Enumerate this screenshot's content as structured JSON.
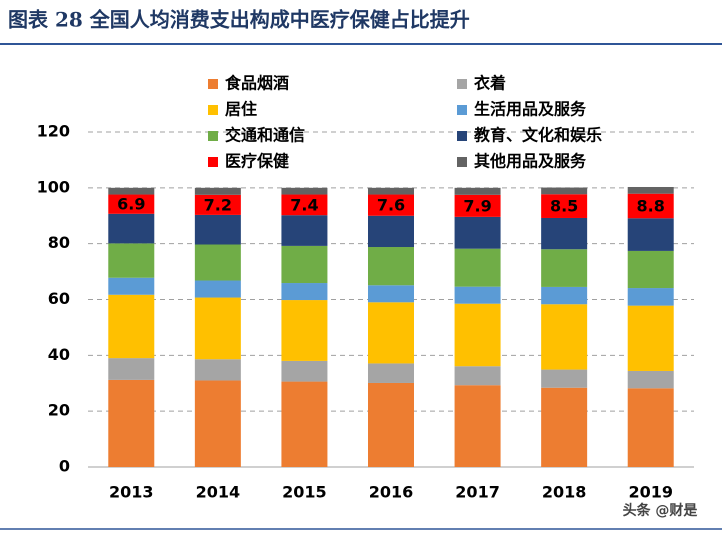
{
  "chart_data": {
    "type": "stacked_bar",
    "title": "图表 28  全国人均消费支出构成中医疗保健占比提升",
    "categories": [
      "2013",
      "2014",
      "2015",
      "2016",
      "2017",
      "2018",
      "2019"
    ],
    "series": [
      {
        "name": "食品烟酒",
        "color": "#ed7d31",
        "values": [
          31.2,
          31.0,
          30.6,
          30.1,
          29.3,
          28.4,
          28.2
        ]
      },
      {
        "name": "衣着",
        "color": "#a5a5a5",
        "values": [
          7.8,
          7.6,
          7.4,
          7.0,
          6.8,
          6.5,
          6.2
        ]
      },
      {
        "name": "居住",
        "color": "#ffc000",
        "values": [
          22.7,
          22.1,
          21.8,
          21.9,
          22.4,
          23.4,
          23.4
        ]
      },
      {
        "name": "生活用品及服务",
        "color": "#5b9bd5",
        "values": [
          6.1,
          6.1,
          6.1,
          6.1,
          6.1,
          6.2,
          6.3
        ]
      },
      {
        "name": "交通和通信",
        "color": "#70ad47",
        "values": [
          12.3,
          12.9,
          13.3,
          13.7,
          13.6,
          13.5,
          13.3
        ]
      },
      {
        "name": "教育、文化和娱乐",
        "color": "#264478",
        "values": [
          10.6,
          10.6,
          11.0,
          11.2,
          11.4,
          11.2,
          11.7
        ]
      },
      {
        "name": "医疗保健",
        "color": "#ff0000",
        "values": [
          6.9,
          7.2,
          7.4,
          7.6,
          7.9,
          8.5,
          8.8
        ],
        "labels": true
      },
      {
        "name": "其他用品及服务",
        "color": "#636363",
        "values": [
          2.4,
          2.5,
          2.4,
          2.4,
          2.5,
          2.4,
          2.4
        ]
      }
    ],
    "ylim": [
      0,
      120
    ],
    "yticks": [
      0,
      20,
      40,
      60,
      80,
      100,
      120
    ],
    "grid": true
  },
  "watermark": "头条 @财是"
}
